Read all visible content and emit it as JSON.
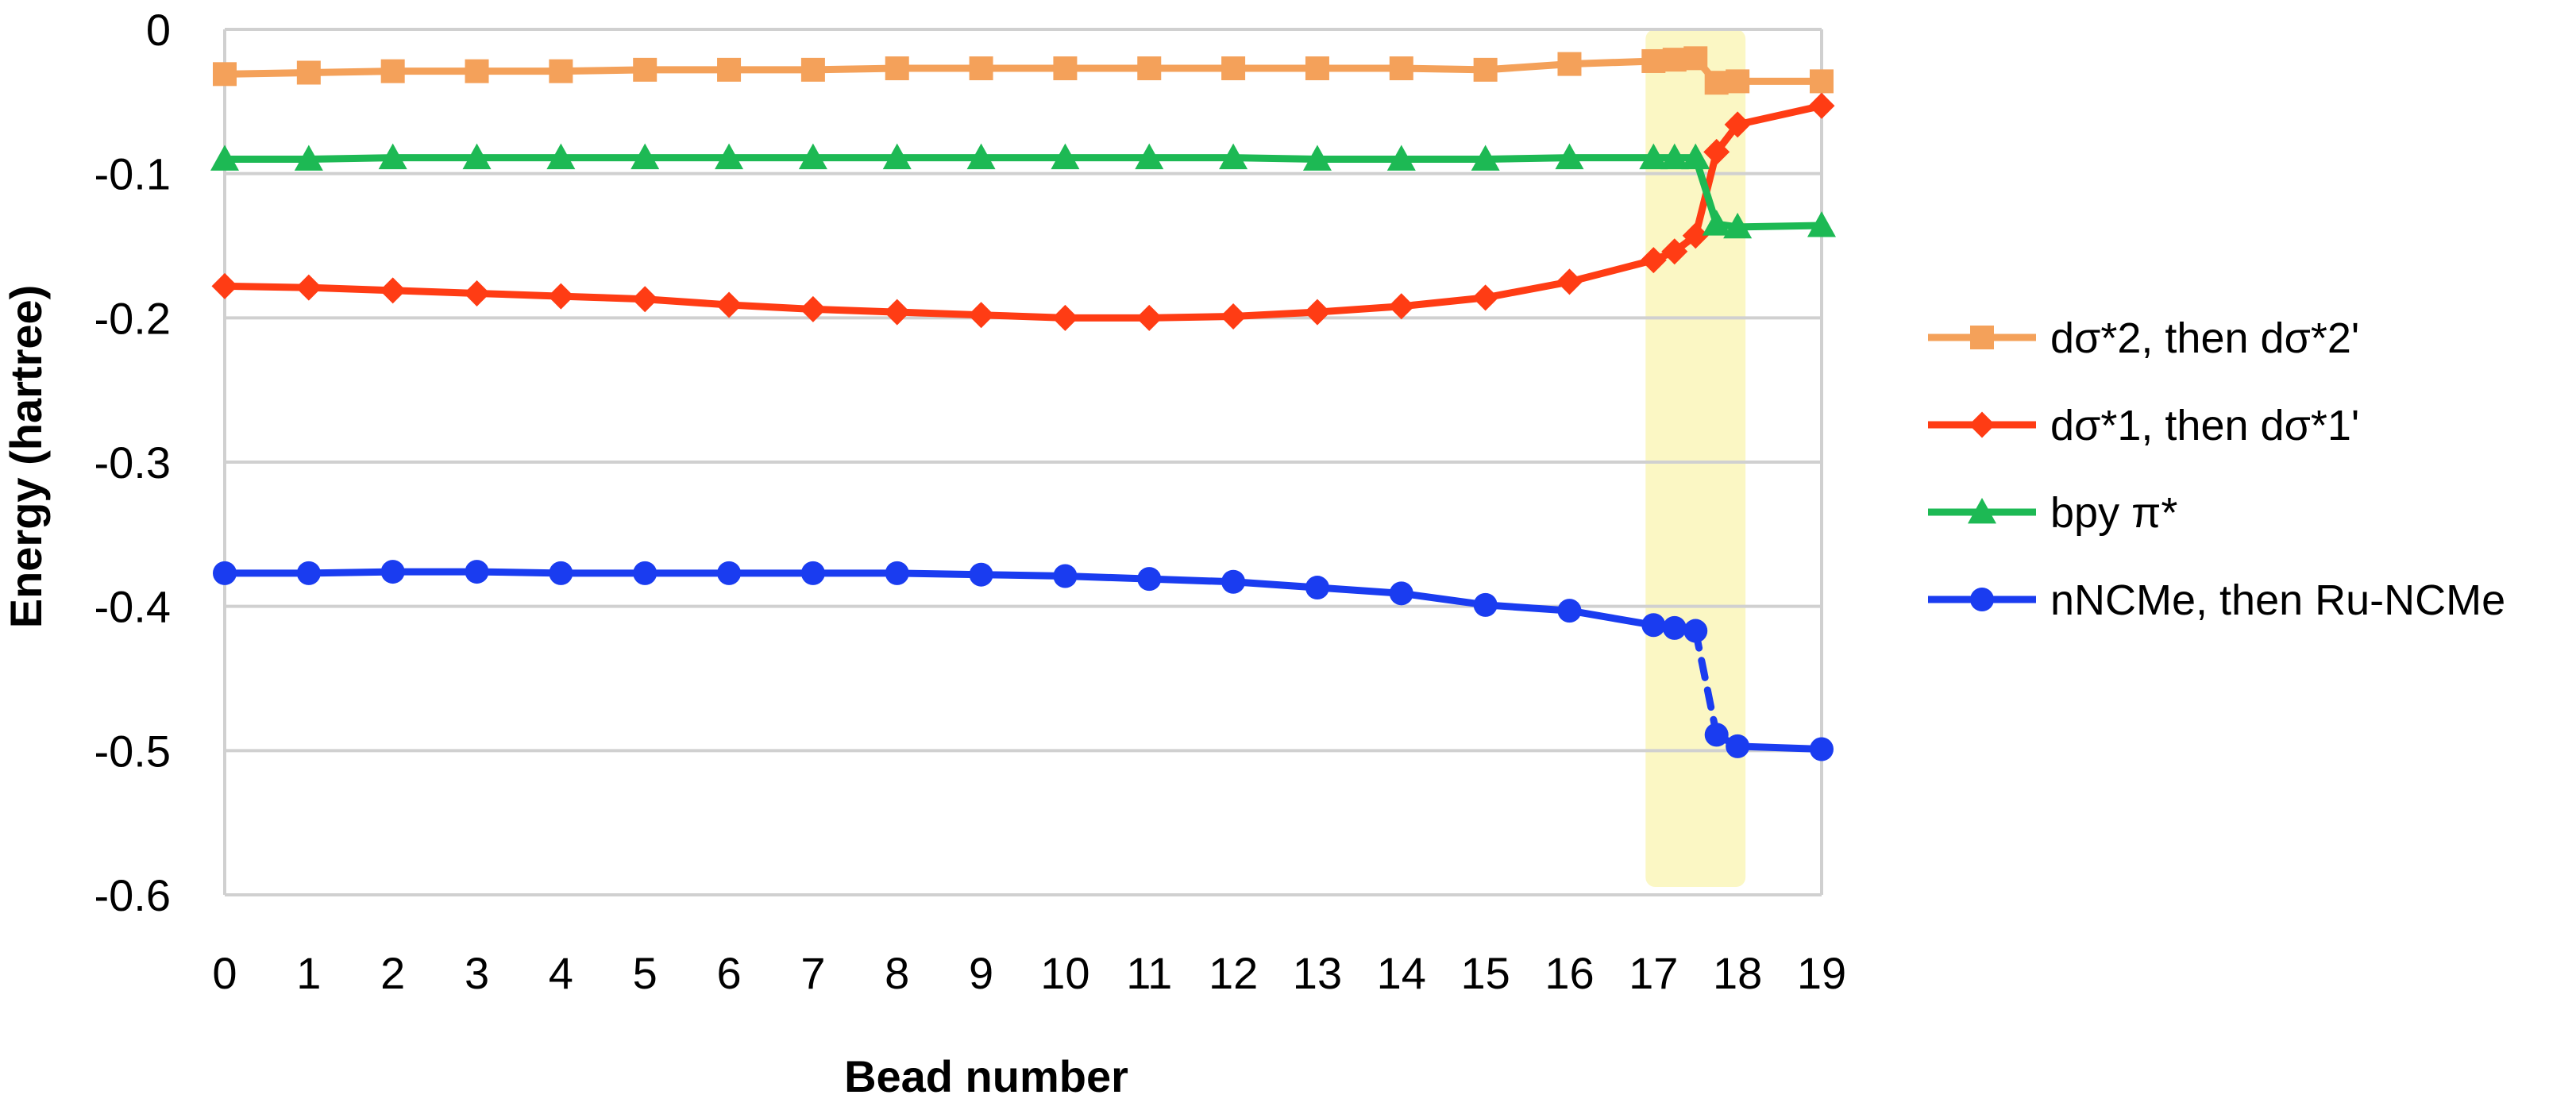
{
  "chart_data": {
    "type": "line",
    "xlabel": "Bead number",
    "ylabel": "Energy (hartree)",
    "xlim": [
      0,
      19
    ],
    "ylim": [
      -0.6,
      0
    ],
    "x_ticks": [
      0,
      1,
      2,
      3,
      4,
      5,
      6,
      7,
      8,
      9,
      10,
      11,
      12,
      13,
      14,
      15,
      16,
      17,
      18,
      19
    ],
    "y_ticks": [
      0,
      -0.1,
      -0.2,
      -0.3,
      -0.4,
      -0.5,
      -0.6
    ],
    "y_tick_labels": [
      "0",
      "-0.1",
      "-0.2",
      "-0.3",
      "-0.4",
      "-0.5",
      "-0.6"
    ],
    "grid": "horizontal",
    "legend_position": "right",
    "highlight_region": {
      "x": [
        17,
        18
      ],
      "color": "#fbf7c4"
    },
    "series": [
      {
        "name": "dσ*2, then dσ*2'",
        "color": "#f4a15a",
        "marker": "square",
        "points": [
          [
            0,
            -0.031
          ],
          [
            1,
            -0.03
          ],
          [
            2,
            -0.029
          ],
          [
            3,
            -0.029
          ],
          [
            4,
            -0.029
          ],
          [
            5,
            -0.028
          ],
          [
            6,
            -0.028
          ],
          [
            7,
            -0.028
          ],
          [
            8,
            -0.027
          ],
          [
            9,
            -0.027
          ],
          [
            10,
            -0.027
          ],
          [
            11,
            -0.027
          ],
          [
            12,
            -0.027
          ],
          [
            13,
            -0.027
          ],
          [
            14,
            -0.027
          ],
          [
            15,
            -0.028
          ],
          [
            16,
            -0.024
          ],
          [
            17,
            -0.022
          ],
          [
            17.25,
            -0.021
          ],
          [
            17.5,
            -0.02
          ],
          [
            17.75,
            -0.037
          ],
          [
            18,
            -0.036
          ],
          [
            19,
            -0.036
          ]
        ],
        "dashed_segments": []
      },
      {
        "name": "dσ*1, then dσ*1'",
        "color": "#ff3c14",
        "marker": "diamond",
        "points": [
          [
            0,
            -0.178
          ],
          [
            1,
            -0.179
          ],
          [
            2,
            -0.181
          ],
          [
            3,
            -0.183
          ],
          [
            4,
            -0.185
          ],
          [
            5,
            -0.187
          ],
          [
            6,
            -0.191
          ],
          [
            7,
            -0.194
          ],
          [
            8,
            -0.196
          ],
          [
            9,
            -0.198
          ],
          [
            10,
            -0.2
          ],
          [
            11,
            -0.2
          ],
          [
            12,
            -0.199
          ],
          [
            13,
            -0.196
          ],
          [
            14,
            -0.192
          ],
          [
            15,
            -0.186
          ],
          [
            16,
            -0.175
          ],
          [
            17,
            -0.16
          ],
          [
            17.25,
            -0.154
          ],
          [
            17.5,
            -0.143
          ],
          [
            17.75,
            -0.085
          ],
          [
            18,
            -0.066
          ],
          [
            19,
            -0.053
          ]
        ],
        "dashed_segments": []
      },
      {
        "name": "bpy π*",
        "color": "#1db954",
        "marker": "triangle",
        "points": [
          [
            0,
            -0.09
          ],
          [
            1,
            -0.09
          ],
          [
            2,
            -0.089
          ],
          [
            3,
            -0.089
          ],
          [
            4,
            -0.089
          ],
          [
            5,
            -0.089
          ],
          [
            6,
            -0.089
          ],
          [
            7,
            -0.089
          ],
          [
            8,
            -0.089
          ],
          [
            9,
            -0.089
          ],
          [
            10,
            -0.089
          ],
          [
            11,
            -0.089
          ],
          [
            12,
            -0.089
          ],
          [
            13,
            -0.09
          ],
          [
            14,
            -0.09
          ],
          [
            15,
            -0.09
          ],
          [
            16,
            -0.089
          ],
          [
            17,
            -0.089
          ],
          [
            17.25,
            -0.089
          ],
          [
            17.5,
            -0.089
          ],
          [
            17.75,
            -0.135
          ],
          [
            18,
            -0.137
          ],
          [
            19,
            -0.136
          ]
        ],
        "dashed_segments": []
      },
      {
        "name": "nNCMe, then Ru-NCMe",
        "color": "#1a3cf0",
        "marker": "circle",
        "points": [
          [
            0,
            -0.377
          ],
          [
            1,
            -0.377
          ],
          [
            2,
            -0.376
          ],
          [
            3,
            -0.376
          ],
          [
            4,
            -0.377
          ],
          [
            5,
            -0.377
          ],
          [
            6,
            -0.377
          ],
          [
            7,
            -0.377
          ],
          [
            8,
            -0.377
          ],
          [
            9,
            -0.378
          ],
          [
            10,
            -0.379
          ],
          [
            11,
            -0.381
          ],
          [
            12,
            -0.383
          ],
          [
            13,
            -0.387
          ],
          [
            14,
            -0.391
          ],
          [
            15,
            -0.399
          ],
          [
            16,
            -0.403
          ],
          [
            17,
            -0.413
          ],
          [
            17.25,
            -0.415
          ],
          [
            17.5,
            -0.417
          ],
          [
            17.75,
            -0.489
          ],
          [
            18,
            -0.497
          ],
          [
            19,
            -0.499
          ]
        ],
        "dashed_segments": [
          [
            19,
            20
          ]
        ]
      }
    ]
  }
}
